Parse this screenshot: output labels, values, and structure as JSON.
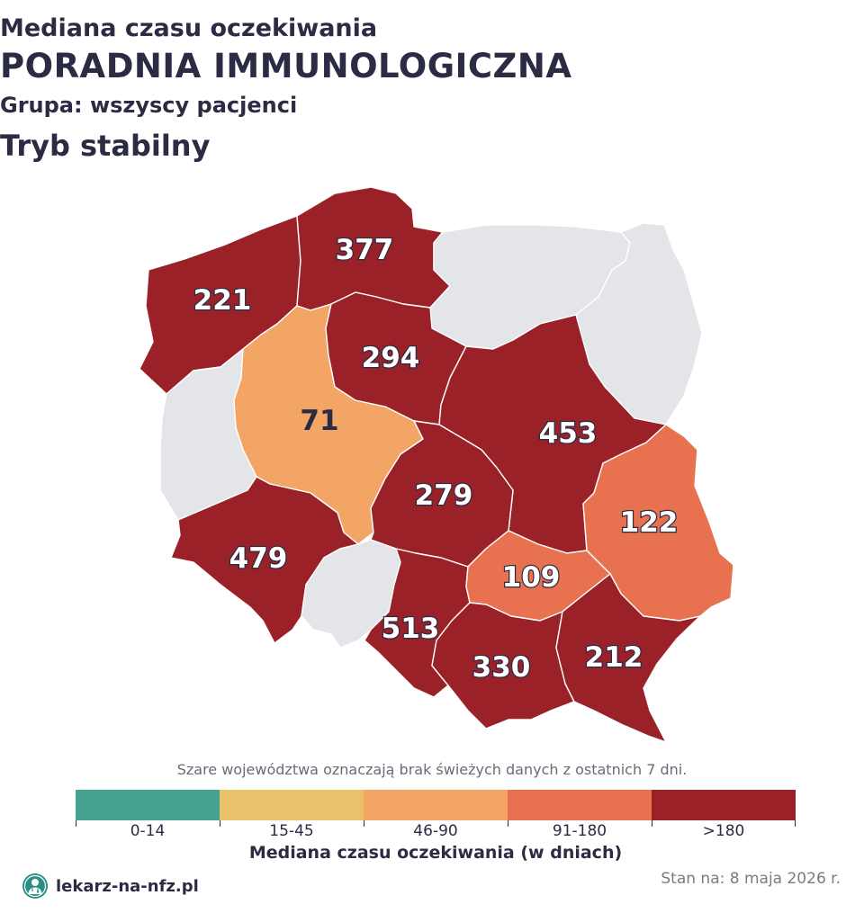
{
  "header": {
    "subtitle": "Mediana czasu oczekiwania",
    "title": "PORADNIA IMMUNOLOGICZNA",
    "group": "Grupa: wszyscy pacjenci",
    "mode": "Tryb stabilny"
  },
  "colors": {
    "no_data": "#e4e5e9",
    "band_0_14": "#46a392",
    "band_15_45": "#e8c26a",
    "band_46_90": "#f3a565",
    "band_91_180": "#e8714f",
    "band_180_plus": "#9a2127"
  },
  "regions": [
    {
      "id": "zachodniopomorskie",
      "value": "221",
      "band": "band_180_plus"
    },
    {
      "id": "pomorskie",
      "value": "377",
      "band": "band_180_plus"
    },
    {
      "id": "warminsko-mazurskie",
      "value": "",
      "band": "no_data"
    },
    {
      "id": "podlaskie",
      "value": "",
      "band": "no_data"
    },
    {
      "id": "lubuskie",
      "value": "",
      "band": "no_data"
    },
    {
      "id": "wielkopolskie",
      "value": "71",
      "band": "band_46_90"
    },
    {
      "id": "kujawsko-pomorskie",
      "value": "294",
      "band": "band_180_plus"
    },
    {
      "id": "mazowieckie",
      "value": "453",
      "band": "band_180_plus"
    },
    {
      "id": "lodzkie",
      "value": "279",
      "band": "band_180_plus"
    },
    {
      "id": "lubelskie",
      "value": "122",
      "band": "band_91_180"
    },
    {
      "id": "dolnoslaskie",
      "value": "479",
      "band": "band_180_plus"
    },
    {
      "id": "opolskie",
      "value": "",
      "band": "no_data"
    },
    {
      "id": "slaskie",
      "value": "513",
      "band": "band_180_plus"
    },
    {
      "id": "swietokrzyskie",
      "value": "109",
      "band": "band_91_180"
    },
    {
      "id": "malopolskie",
      "value": "330",
      "band": "band_180_plus"
    },
    {
      "id": "podkarpackie",
      "value": "212",
      "band": "band_180_plus"
    }
  ],
  "note": "Szare województwa oznaczają brak świeżych danych z ostatnich 7 dni.",
  "legend": {
    "labels": [
      "0-14",
      "15-45",
      "46-90",
      "91-180",
      ">180"
    ],
    "title": "Mediana czasu oczekiwania (w dniach)"
  },
  "footer": {
    "brand": "lekarz-na-nfz.pl",
    "date": "Stan na: 8 maja 2026 r.",
    "logo_icon": "doctor-logo-icon"
  }
}
